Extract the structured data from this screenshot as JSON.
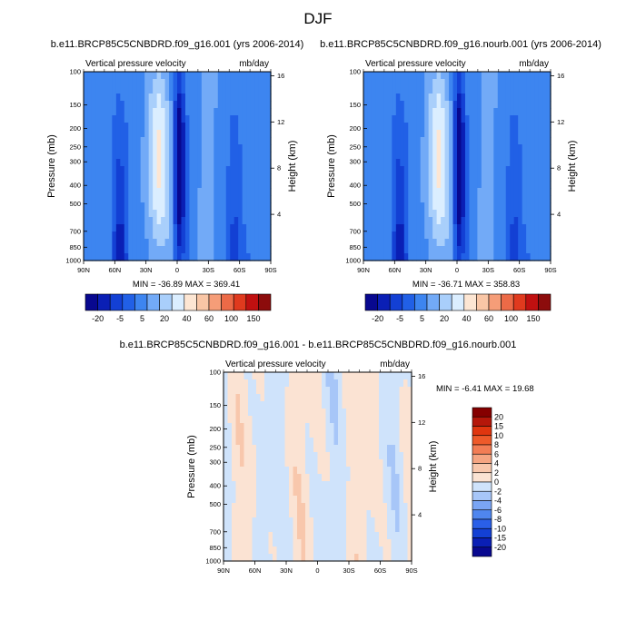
{
  "figure": {
    "title": "DJF",
    "diff_title": "b.e11.BRCP85C5CNBDRD.f09_g16.001 - b.e11.BRCP85C5CNBDRD.f09_g16.nourb.001"
  },
  "colors": {
    "abs_palette": [
      "#08088f",
      "#0a1fb5",
      "#1340d4",
      "#2160e6",
      "#3d85f0",
      "#72aaf7",
      "#a9cffb",
      "#dbeeff",
      "#fde6d3",
      "#f9c6a6",
      "#f59d78",
      "#ec6a47",
      "#e03a1e",
      "#c01010",
      "#8c0c0c"
    ],
    "diff_palette": [
      "#08088f",
      "#0a1fb5",
      "#1340d4",
      "#2a5fe8",
      "#4f86ef",
      "#7aa5f4",
      "#a7c6f8",
      "#cfe3fb",
      "#fbe3d3",
      "#f8c7ac",
      "#f5a582",
      "#f27d55",
      "#ee5a2a",
      "#e0360f",
      "#b5170a",
      "#850000"
    ]
  },
  "chart_data": [
    {
      "type": "heatmap",
      "title": "b.e11.BRCP85C5CNBDRD.f09_g16.001 (yrs 2006-2014)",
      "field_name": "Vertical pressure velocity",
      "units": "mb/day",
      "xlabel": "",
      "ylabel": "Pressure (mb)",
      "y2label": "Height (km)",
      "x_ticks": [
        "90N",
        "60N",
        "30N",
        "0",
        "30S",
        "60S",
        "90S"
      ],
      "y_ticks": [
        "100",
        "150",
        "200",
        "250",
        "300",
        "400",
        "500",
        "700",
        "850",
        "1000"
      ],
      "y2_ticks": [
        "16",
        "12",
        "8",
        "4"
      ],
      "y_scale": "log",
      "ylim": [
        1000,
        100
      ],
      "stats": "MIN = -36.89  MAX = 369.41",
      "colorbar_labels": [
        "-20",
        "-5",
        "5",
        "20",
        "40",
        "60",
        "100",
        "150"
      ],
      "legend_position": "bottom"
    },
    {
      "type": "heatmap",
      "title": "b.e11.BRCP85C5CNBDRD.f09_g16.nourb.001 (yrs 2006-2014)",
      "field_name": "Vertical pressure velocity",
      "units": "mb/day",
      "xlabel": "",
      "ylabel": "Pressure (mb)",
      "y2label": "Height (km)",
      "x_ticks": [
        "90N",
        "60N",
        "30N",
        "0",
        "30S",
        "60S",
        "90S"
      ],
      "y_ticks": [
        "100",
        "150",
        "200",
        "250",
        "300",
        "400",
        "500",
        "700",
        "850",
        "1000"
      ],
      "y2_ticks": [
        "16",
        "12",
        "8",
        "4"
      ],
      "y_scale": "log",
      "ylim": [
        1000,
        100
      ],
      "stats": "MIN = -36.71  MAX = 358.83",
      "colorbar_labels": [
        "-20",
        "-5",
        "5",
        "20",
        "40",
        "60",
        "100",
        "150"
      ],
      "legend_position": "bottom"
    },
    {
      "type": "heatmap",
      "title": "",
      "field_name": "Vertical pressure velocity",
      "units": "mb/day",
      "xlabel": "",
      "ylabel": "Pressure (mb)",
      "y2label": "Height (km)",
      "x_ticks": [
        "90N",
        "60N",
        "30N",
        "0",
        "30S",
        "60S",
        "90S"
      ],
      "y_ticks": [
        "100",
        "150",
        "200",
        "250",
        "300",
        "400",
        "500",
        "700",
        "850",
        "1000"
      ],
      "y2_ticks": [
        "16",
        "12",
        "8",
        "4"
      ],
      "y_scale": "log",
      "ylim": [
        1000,
        100
      ],
      "stats": "MIN =  -6.41  MAX =  19.68",
      "colorbar_labels": [
        "20",
        "15",
        "10",
        "8",
        "6",
        "4",
        "2",
        "0",
        "-2",
        "-4",
        "-6",
        "-8",
        "-10",
        "-15",
        "-20"
      ],
      "legend_position": "right"
    }
  ]
}
